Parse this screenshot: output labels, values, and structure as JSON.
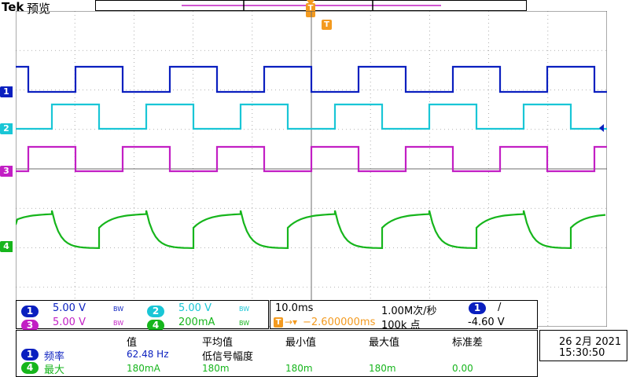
{
  "header": {
    "brand": "Tek",
    "mode": "预览"
  },
  "trigger_marker": "T",
  "channels": [
    {
      "id": "1",
      "color": "#0a1fbf",
      "scale": "5.00 V",
      "bw": "BW"
    },
    {
      "id": "2",
      "color": "#19c6d6",
      "scale": "5.00 V",
      "bw": "BW"
    },
    {
      "id": "3",
      "color": "#c21fc4",
      "scale": "5.00 V",
      "bw": "BW"
    },
    {
      "id": "4",
      "color": "#16b51c",
      "scale": "200mA",
      "bw": "BW"
    }
  ],
  "acquisition": {
    "timebase": "10.0ms",
    "sample_rate": "1.00M次/秒",
    "record_length": "100k 点",
    "trigger_delay": "−2.600000ms",
    "trigger_source": "1",
    "trigger_slope": "/",
    "trigger_level": "-4.60 V"
  },
  "measurements": {
    "headers": [
      "值",
      "平均值",
      "最小值",
      "最大值",
      "标准差"
    ],
    "rows": [
      {
        "source": "1",
        "label": "频率",
        "value": "62.48 Hz",
        "mean": "低信号幅度",
        "min": "",
        "max": "",
        "std": ""
      },
      {
        "source": "4",
        "label": "最大",
        "value": "180mA",
        "mean": "180m",
        "min": "180m",
        "max": "180m",
        "std": "0.00"
      }
    ]
  },
  "datetime": {
    "date": "26 2月 2021",
    "time": "15:30:50"
  }
}
